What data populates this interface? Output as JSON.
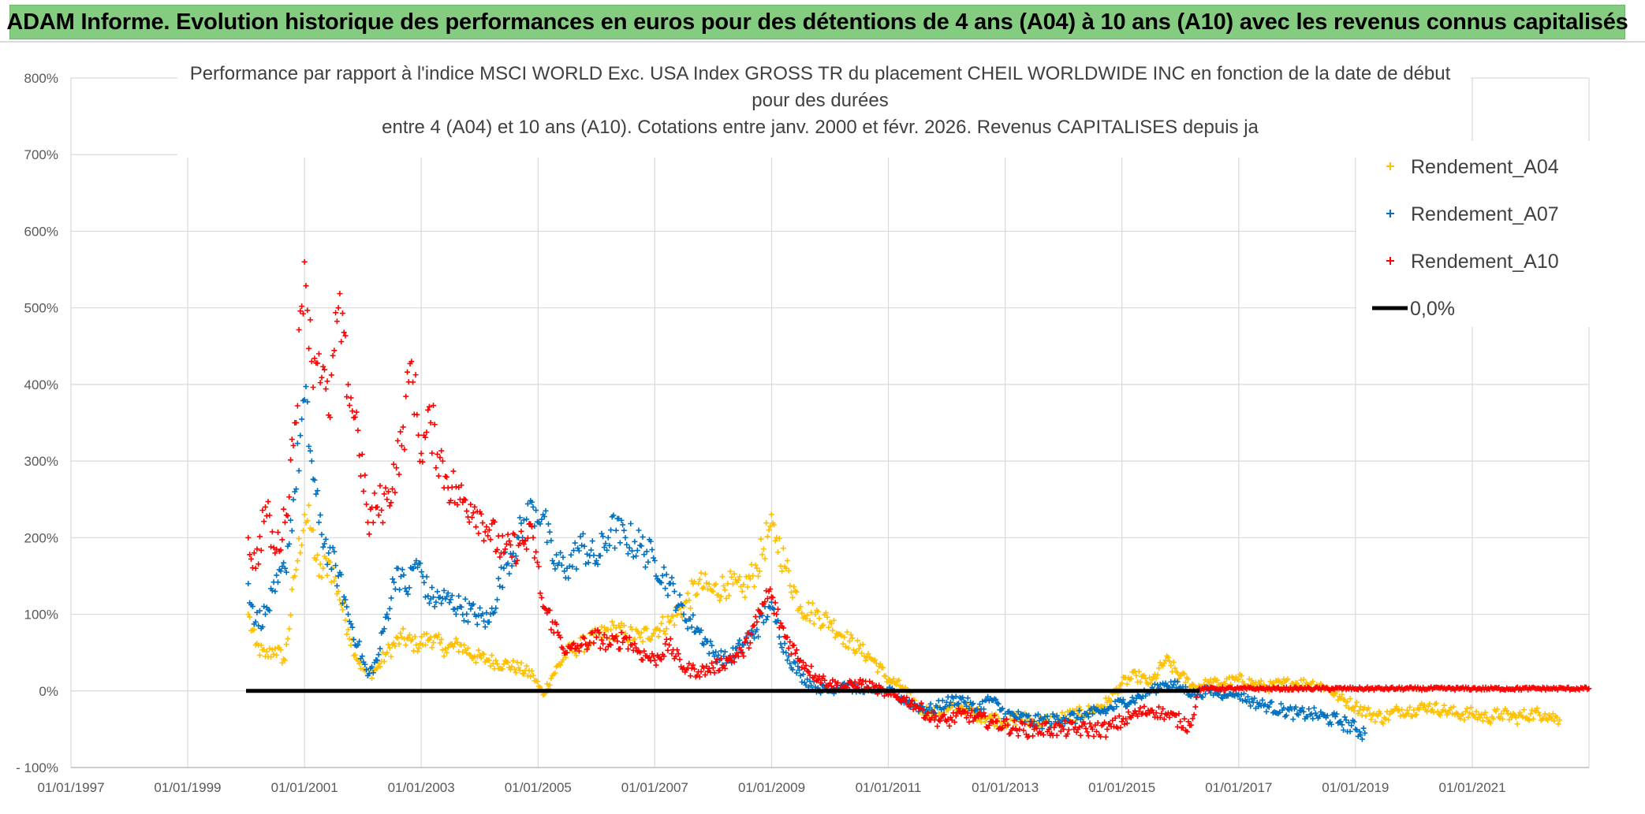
{
  "header": {
    "title": "ADAM Informe. Evolution historique des performances en euros pour des détentions de 4 ans (A04) à 10 ans (A10) avec les revenus connus capitalisés"
  },
  "chart_data": {
    "type": "scatter",
    "title_lines": [
      "Performance par rapport à l'indice MSCI WORLD Exc. USA Index GROSS TR  du placement CHEIL WORLDWIDE INC en fonction de la date de début",
      "pour des durées",
      "entre 4 (A04) et 10 ans (A10). Cotations entre janv. 2000 et févr. 2026. Revenus CAPITALISES depuis ja"
    ],
    "xlabel": "",
    "ylabel": "",
    "x_ticks": [
      "01/01/1997",
      "01/01/1999",
      "01/01/2001",
      "01/01/2003",
      "01/01/2005",
      "01/01/2007",
      "01/01/2009",
      "01/01/2011",
      "01/01/2013",
      "01/01/2015",
      "01/01/2017",
      "01/01/2019",
      "01/01/2021"
    ],
    "xlim": [
      "1997-01-01",
      "2023-01-01"
    ],
    "y_ticks": [
      "- 100%",
      "0%",
      "100%",
      "200%",
      "300%",
      "400%",
      "500%",
      "600%",
      "700%",
      "800%"
    ],
    "ylim": [
      -100,
      800
    ],
    "grid": true,
    "legend_position": "top-right",
    "series": [
      {
        "name": "Rendement_A04",
        "color": "#ffc000",
        "marker": "+",
        "points": [
          [
            "2000-01-15",
            100
          ],
          [
            "2000-03-01",
            60
          ],
          [
            "2000-05-01",
            45
          ],
          [
            "2000-07-01",
            55
          ],
          [
            "2000-09-01",
            40
          ],
          [
            "2000-11-01",
            150
          ],
          [
            "2001-01-01",
            230
          ],
          [
            "2001-02-15",
            210
          ],
          [
            "2001-04-01",
            150
          ],
          [
            "2001-06-01",
            170
          ],
          [
            "2001-08-01",
            130
          ],
          [
            "2001-10-01",
            80
          ],
          [
            "2001-12-01",
            40
          ],
          [
            "2002-02-01",
            20
          ],
          [
            "2002-04-01",
            30
          ],
          [
            "2002-06-01",
            50
          ],
          [
            "2002-09-01",
            70
          ],
          [
            "2002-12-01",
            60
          ],
          [
            "2003-03-01",
            70
          ],
          [
            "2003-06-01",
            55
          ],
          [
            "2003-09-01",
            60
          ],
          [
            "2003-12-01",
            45
          ],
          [
            "2004-03-01",
            40
          ],
          [
            "2004-06-01",
            35
          ],
          [
            "2004-09-01",
            30
          ],
          [
            "2004-12-01",
            20
          ],
          [
            "2005-02-01",
            -5
          ],
          [
            "2005-04-01",
            20
          ],
          [
            "2005-07-01",
            50
          ],
          [
            "2005-10-01",
            60
          ],
          [
            "2006-01-01",
            70
          ],
          [
            "2006-04-01",
            80
          ],
          [
            "2006-07-01",
            75
          ],
          [
            "2006-10-01",
            70
          ],
          [
            "2007-01-01",
            80
          ],
          [
            "2007-04-01",
            90
          ],
          [
            "2007-07-01",
            110
          ],
          [
            "2007-10-01",
            140
          ],
          [
            "2008-01-01",
            130
          ],
          [
            "2008-04-01",
            140
          ],
          [
            "2008-07-01",
            130
          ],
          [
            "2008-10-01",
            160
          ],
          [
            "2008-12-15",
            210
          ],
          [
            "2009-02-01",
            200
          ],
          [
            "2009-04-01",
            160
          ],
          [
            "2009-07-01",
            110
          ],
          [
            "2009-10-01",
            100
          ],
          [
            "2010-01-01",
            90
          ],
          [
            "2010-04-01",
            70
          ],
          [
            "2010-07-01",
            55
          ],
          [
            "2010-10-01",
            40
          ],
          [
            "2011-01-01",
            15
          ],
          [
            "2011-04-01",
            5
          ],
          [
            "2011-07-01",
            -20
          ],
          [
            "2011-10-01",
            -30
          ],
          [
            "2012-01-01",
            -25
          ],
          [
            "2012-04-01",
            -20
          ],
          [
            "2012-07-01",
            -30
          ],
          [
            "2012-10-01",
            -35
          ],
          [
            "2013-01-01",
            -40
          ],
          [
            "2013-04-01",
            -35
          ],
          [
            "2013-07-01",
            -40
          ],
          [
            "2013-10-01",
            -40
          ],
          [
            "2014-01-01",
            -35
          ],
          [
            "2014-04-01",
            -30
          ],
          [
            "2014-07-01",
            -25
          ],
          [
            "2014-10-01",
            -15
          ],
          [
            "2015-01-01",
            10
          ],
          [
            "2015-04-01",
            20
          ],
          [
            "2015-07-01",
            10
          ],
          [
            "2015-10-01",
            40
          ],
          [
            "2016-01-01",
            20
          ],
          [
            "2016-04-01",
            5
          ],
          [
            "2016-07-01",
            10
          ],
          [
            "2016-10-01",
            10
          ],
          [
            "2017-01-01",
            15
          ],
          [
            "2017-04-01",
            10
          ],
          [
            "2017-07-01",
            5
          ],
          [
            "2017-10-01",
            10
          ],
          [
            "2018-01-01",
            10
          ],
          [
            "2018-04-01",
            10
          ],
          [
            "2018-07-01",
            5
          ],
          [
            "2018-10-01",
            -10
          ],
          [
            "2019-01-01",
            -20
          ],
          [
            "2019-04-01",
            -30
          ],
          [
            "2019-07-01",
            -35
          ],
          [
            "2019-10-01",
            -25
          ],
          [
            "2020-01-01",
            -25
          ],
          [
            "2020-04-01",
            -20
          ],
          [
            "2020-07-01",
            -25
          ],
          [
            "2020-10-01",
            -30
          ],
          [
            "2021-01-01",
            -30
          ],
          [
            "2021-04-01",
            -35
          ],
          [
            "2021-07-01",
            -30
          ],
          [
            "2021-10-01",
            -35
          ],
          [
            "2022-01-01",
            -30
          ],
          [
            "2022-04-01",
            -30
          ],
          [
            "2022-07-01",
            -38
          ]
        ]
      },
      {
        "name": "Rendement_A07",
        "color": "#0070c0",
        "marker": "+",
        "points": [
          [
            "2000-01-15",
            140
          ],
          [
            "2000-03-01",
            90
          ],
          [
            "2000-05-01",
            100
          ],
          [
            "2000-07-01",
            130
          ],
          [
            "2000-09-01",
            160
          ],
          [
            "2000-11-01",
            260
          ],
          [
            "2001-01-01",
            380
          ],
          [
            "2001-02-15",
            300
          ],
          [
            "2001-04-01",
            220
          ],
          [
            "2001-06-01",
            180
          ],
          [
            "2001-08-01",
            150
          ],
          [
            "2001-10-01",
            100
          ],
          [
            "2001-12-01",
            60
          ],
          [
            "2002-02-01",
            20
          ],
          [
            "2002-04-01",
            40
          ],
          [
            "2002-06-01",
            100
          ],
          [
            "2002-08-01",
            160
          ],
          [
            "2002-10-01",
            130
          ],
          [
            "2002-12-01",
            170
          ],
          [
            "2003-03-01",
            120
          ],
          [
            "2003-06-01",
            120
          ],
          [
            "2003-09-01",
            110
          ],
          [
            "2003-12-01",
            100
          ],
          [
            "2004-03-01",
            90
          ],
          [
            "2004-06-01",
            160
          ],
          [
            "2004-09-01",
            200
          ],
          [
            "2004-12-01",
            240
          ],
          [
            "2005-02-01",
            230
          ],
          [
            "2005-04-01",
            170
          ],
          [
            "2005-07-01",
            160
          ],
          [
            "2005-10-01",
            190
          ],
          [
            "2006-01-01",
            170
          ],
          [
            "2006-04-01",
            210
          ],
          [
            "2006-07-01",
            200
          ],
          [
            "2006-10-01",
            190
          ],
          [
            "2007-01-01",
            170
          ],
          [
            "2007-04-01",
            140
          ],
          [
            "2007-07-01",
            100
          ],
          [
            "2007-10-01",
            80
          ],
          [
            "2008-01-01",
            50
          ],
          [
            "2008-04-01",
            40
          ],
          [
            "2008-07-01",
            60
          ],
          [
            "2008-10-01",
            80
          ],
          [
            "2008-12-15",
            110
          ],
          [
            "2009-02-01",
            90
          ],
          [
            "2009-04-01",
            50
          ],
          [
            "2009-07-01",
            20
          ],
          [
            "2009-10-01",
            5
          ],
          [
            "2010-01-01",
            0
          ],
          [
            "2010-04-01",
            10
          ],
          [
            "2010-07-01",
            0
          ],
          [
            "2010-10-01",
            0
          ],
          [
            "2011-01-01",
            0
          ],
          [
            "2011-04-01",
            -10
          ],
          [
            "2011-07-01",
            -20
          ],
          [
            "2011-10-01",
            -25
          ],
          [
            "2012-01-01",
            -15
          ],
          [
            "2012-04-01",
            -10
          ],
          [
            "2012-07-01",
            -25
          ],
          [
            "2012-10-01",
            -10
          ],
          [
            "2013-01-01",
            -30
          ],
          [
            "2013-04-01",
            -35
          ],
          [
            "2013-07-01",
            -40
          ],
          [
            "2013-10-01",
            -40
          ],
          [
            "2014-01-01",
            -35
          ],
          [
            "2014-04-01",
            -35
          ],
          [
            "2014-07-01",
            -30
          ],
          [
            "2014-10-01",
            -25
          ],
          [
            "2015-01-01",
            -15
          ],
          [
            "2015-04-01",
            -10
          ],
          [
            "2015-07-01",
            0
          ],
          [
            "2015-10-01",
            10
          ],
          [
            "2016-01-01",
            5
          ],
          [
            "2016-04-01",
            -5
          ],
          [
            "2016-07-01",
            0
          ],
          [
            "2016-10-01",
            -5
          ],
          [
            "2017-01-01",
            -5
          ],
          [
            "2017-04-01",
            -15
          ],
          [
            "2017-07-01",
            -20
          ],
          [
            "2017-10-01",
            -25
          ],
          [
            "2018-01-01",
            -30
          ],
          [
            "2018-04-01",
            -30
          ],
          [
            "2018-07-01",
            -35
          ],
          [
            "2018-10-01",
            -40
          ],
          [
            "2019-01-01",
            -50
          ],
          [
            "2019-03-01",
            -55
          ]
        ]
      },
      {
        "name": "Rendement_A10",
        "color": "#ff0000",
        "marker": "+",
        "points": [
          [
            "2000-01-15",
            200
          ],
          [
            "2000-03-01",
            160
          ],
          [
            "2000-05-01",
            240
          ],
          [
            "2000-07-01",
            180
          ],
          [
            "2000-09-01",
            220
          ],
          [
            "2000-11-01",
            350
          ],
          [
            "2001-01-01",
            560
          ],
          [
            "2001-02-15",
            430
          ],
          [
            "2001-04-01",
            440
          ],
          [
            "2001-06-01",
            360
          ],
          [
            "2001-08-01",
            500
          ],
          [
            "2001-10-01",
            400
          ],
          [
            "2001-12-01",
            340
          ],
          [
            "2002-02-01",
            220
          ],
          [
            "2002-04-01",
            240
          ],
          [
            "2002-06-01",
            250
          ],
          [
            "2002-09-01",
            320
          ],
          [
            "2002-11-01",
            430
          ],
          [
            "2003-01-01",
            310
          ],
          [
            "2003-03-01",
            350
          ],
          [
            "2003-06-01",
            280
          ],
          [
            "2003-09-01",
            250
          ],
          [
            "2003-12-01",
            240
          ],
          [
            "2004-03-01",
            210
          ],
          [
            "2004-06-01",
            180
          ],
          [
            "2004-09-01",
            190
          ],
          [
            "2004-12-01",
            200
          ],
          [
            "2005-02-01",
            110
          ],
          [
            "2005-04-01",
            90
          ],
          [
            "2005-07-01",
            50
          ],
          [
            "2005-10-01",
            60
          ],
          [
            "2006-01-01",
            70
          ],
          [
            "2006-04-01",
            60
          ],
          [
            "2006-07-01",
            70
          ],
          [
            "2006-10-01",
            50
          ],
          [
            "2007-01-01",
            40
          ],
          [
            "2007-04-01",
            60
          ],
          [
            "2007-07-01",
            30
          ],
          [
            "2007-10-01",
            25
          ],
          [
            "2008-01-01",
            30
          ],
          [
            "2008-04-01",
            40
          ],
          [
            "2008-07-01",
            50
          ],
          [
            "2008-10-01",
            90
          ],
          [
            "2008-12-15",
            130
          ],
          [
            "2009-02-01",
            100
          ],
          [
            "2009-04-01",
            70
          ],
          [
            "2009-07-01",
            40
          ],
          [
            "2009-10-01",
            20
          ],
          [
            "2010-01-01",
            10
          ],
          [
            "2010-04-01",
            5
          ],
          [
            "2010-07-01",
            10
          ],
          [
            "2010-10-01",
            5
          ],
          [
            "2011-01-01",
            -5
          ],
          [
            "2011-04-01",
            -10
          ],
          [
            "2011-07-01",
            -20
          ],
          [
            "2011-10-01",
            -35
          ],
          [
            "2012-01-01",
            -40
          ],
          [
            "2012-04-01",
            -30
          ],
          [
            "2012-07-01",
            -35
          ],
          [
            "2012-10-01",
            -40
          ],
          [
            "2013-01-01",
            -45
          ],
          [
            "2013-04-01",
            -50
          ],
          [
            "2013-07-01",
            -50
          ],
          [
            "2013-10-01",
            -50
          ],
          [
            "2014-01-01",
            -50
          ],
          [
            "2014-04-01",
            -50
          ],
          [
            "2014-07-01",
            -50
          ],
          [
            "2014-10-01",
            -50
          ],
          [
            "2015-01-01",
            -40
          ],
          [
            "2015-04-01",
            -30
          ],
          [
            "2015-07-01",
            -25
          ],
          [
            "2015-10-01",
            -30
          ],
          [
            "2016-01-01",
            -40
          ],
          [
            "2016-03-01",
            -45
          ],
          [
            "2016-05-01",
            3
          ],
          [
            "2017-01-01",
            3
          ],
          [
            "2018-01-01",
            3
          ],
          [
            "2019-01-01",
            3
          ],
          [
            "2020-01-01",
            3
          ],
          [
            "2021-01-01",
            3
          ],
          [
            "2022-01-01",
            3
          ],
          [
            "2022-12-31",
            3
          ]
        ]
      },
      {
        "name": "0,0%",
        "color": "#000000",
        "type": "line",
        "points": [
          [
            "2000-01-01",
            0
          ],
          [
            "2016-05-01",
            0
          ]
        ]
      }
    ]
  }
}
